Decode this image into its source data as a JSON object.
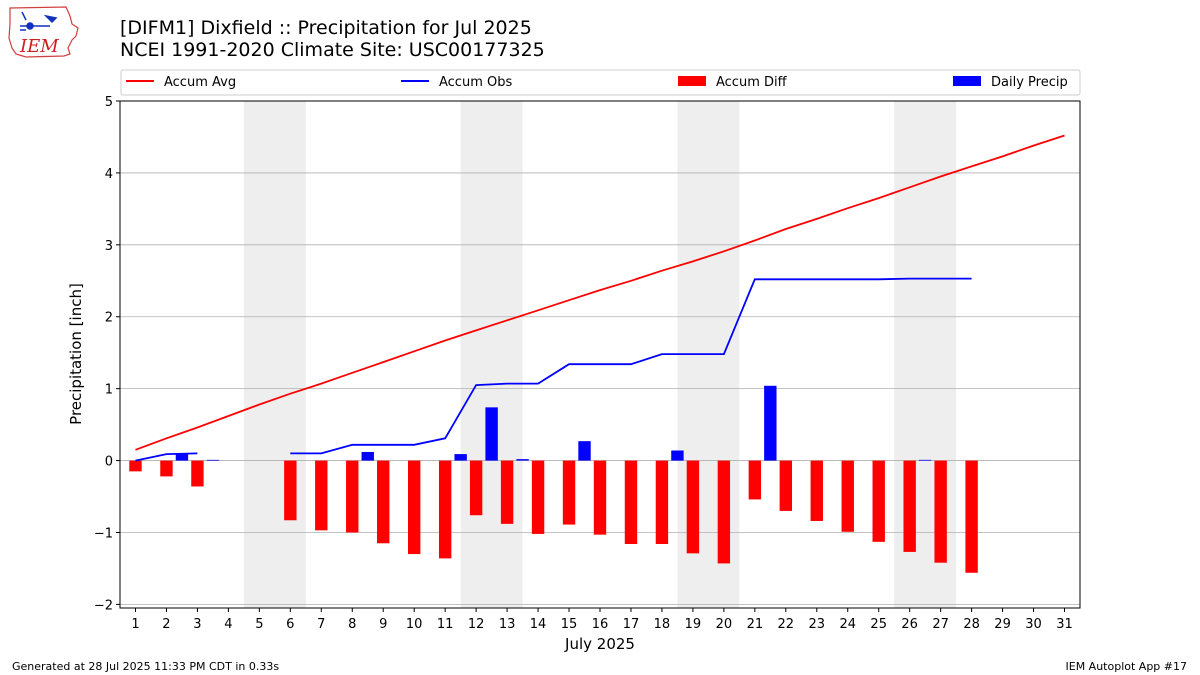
{
  "header": {
    "title_line1": "[DIFM1] Dixfield :: Precipitation for Jul 2025",
    "title_line2": "NCEI 1991-2020 Climate Site: USC00177325",
    "logo_text": "IEM"
  },
  "footer": {
    "left": "Generated at 28 Jul 2025 11:33 PM CDT in 0.33s",
    "right": "IEM Autoplot App #17"
  },
  "colors": {
    "accum_avg": "#ff0000",
    "accum_obs": "#0000ff",
    "accum_diff": "#ff0000",
    "daily_precip": "#0000ff",
    "weekend_band": "#eeeeee",
    "grid": "#b0b0b0"
  },
  "chart_data": {
    "type": "bar",
    "xlabel": "July 2025",
    "ylabel": "Precipitation [inch]",
    "xlim": [
      0.5,
      31.5
    ],
    "ylim": [
      -2.05,
      5
    ],
    "yticks": [
      -2,
      -1,
      0,
      1,
      2,
      3,
      4,
      5
    ],
    "ytick_labels": [
      "−2",
      "−1",
      "0",
      "1",
      "2",
      "3",
      "4",
      "5"
    ],
    "x": [
      1,
      2,
      3,
      4,
      5,
      6,
      7,
      8,
      9,
      10,
      11,
      12,
      13,
      14,
      15,
      16,
      17,
      18,
      19,
      20,
      21,
      22,
      23,
      24,
      25,
      26,
      27,
      28,
      29,
      30,
      31
    ],
    "grid": "horizontal",
    "legend_position": "top",
    "weekend_bands": [
      [
        4.5,
        6.5
      ],
      [
        11.5,
        13.5
      ],
      [
        18.5,
        20.5
      ],
      [
        25.5,
        27.5
      ]
    ],
    "series": [
      {
        "name": "Accum Avg",
        "kind": "line",
        "values": [
          0.15,
          0.31,
          0.46,
          0.62,
          0.78,
          0.93,
          1.07,
          1.22,
          1.37,
          1.52,
          1.67,
          1.81,
          1.95,
          2.09,
          2.23,
          2.37,
          2.5,
          2.64,
          2.77,
          2.91,
          3.06,
          3.22,
          3.36,
          3.51,
          3.65,
          3.8,
          3.95,
          4.09,
          4.23,
          4.38,
          4.52
        ]
      },
      {
        "name": "Accum Obs",
        "kind": "line",
        "values": [
          0.0,
          0.09,
          0.1,
          null,
          null,
          0.1,
          0.1,
          0.22,
          0.22,
          0.22,
          0.31,
          1.05,
          1.07,
          1.07,
          1.34,
          1.34,
          1.34,
          1.48,
          1.48,
          1.48,
          2.52,
          2.52,
          2.52,
          2.52,
          2.52,
          2.53,
          2.53,
          2.53,
          null,
          null,
          null
        ]
      },
      {
        "name": "Accum Diff",
        "kind": "bar",
        "values": [
          -0.15,
          -0.22,
          -0.36,
          null,
          null,
          -0.83,
          -0.97,
          -1.0,
          -1.15,
          -1.3,
          -1.36,
          -0.76,
          -0.88,
          -1.02,
          -0.89,
          -1.03,
          -1.16,
          -1.16,
          -1.29,
          -1.43,
          -0.54,
          -0.7,
          -0.84,
          -0.99,
          -1.13,
          -1.27,
          -1.42,
          -1.56,
          null,
          null,
          null
        ]
      },
      {
        "name": "Daily Precip",
        "kind": "bar",
        "values": [
          0.0,
          0.09,
          0.01,
          null,
          null,
          0.0,
          0.0,
          0.12,
          0.0,
          0.0,
          0.09,
          0.74,
          0.02,
          0.0,
          0.27,
          0.0,
          0.0,
          0.14,
          0.0,
          0.0,
          1.04,
          0.0,
          0.0,
          0.0,
          0.0,
          0.01,
          0.0,
          0.0,
          null,
          null,
          null
        ]
      }
    ]
  }
}
